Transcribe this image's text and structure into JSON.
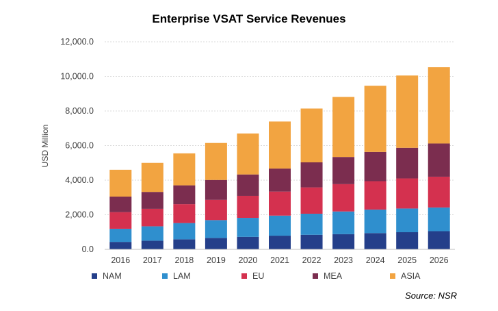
{
  "chart_data": {
    "type": "bar",
    "stacked": true,
    "title": "Enterprise VSAT Service Revenues",
    "ylabel": "USD Million",
    "xlabel": "",
    "ylim": [
      0,
      12000
    ],
    "yticks": [
      "0.0",
      "2,000.0",
      "4,000.0",
      "6,000.0",
      "8,000.0",
      "10,000.0",
      "12,000.0"
    ],
    "categories": [
      "2016",
      "2017",
      "2018",
      "2019",
      "2020",
      "2021",
      "2022",
      "2023",
      "2024",
      "2025",
      "2026"
    ],
    "series": [
      {
        "name": "NAM",
        "color": "#243f8a",
        "values": [
          430,
          500,
          580,
          660,
          720,
          790,
          840,
          880,
          940,
          990,
          1050
        ]
      },
      {
        "name": "LAM",
        "color": "#2f8fce",
        "values": [
          760,
          830,
          940,
          1030,
          1100,
          1160,
          1220,
          1310,
          1360,
          1370,
          1370
        ]
      },
      {
        "name": "EU",
        "color": "#d4314f",
        "values": [
          960,
          1010,
          1090,
          1170,
          1270,
          1390,
          1520,
          1580,
          1640,
          1740,
          1780
        ]
      },
      {
        "name": "MEA",
        "color": "#7b2d4f",
        "values": [
          900,
          980,
          1090,
          1150,
          1240,
          1330,
          1450,
          1570,
          1690,
          1770,
          1920
        ]
      },
      {
        "name": "ASIA",
        "color": "#f2a441",
        "values": [
          1550,
          1680,
          1850,
          2140,
          2370,
          2720,
          3110,
          3470,
          3830,
          4180,
          4410
        ]
      }
    ],
    "legend_position": "bottom",
    "grid": true,
    "source": "Source: NSR"
  }
}
